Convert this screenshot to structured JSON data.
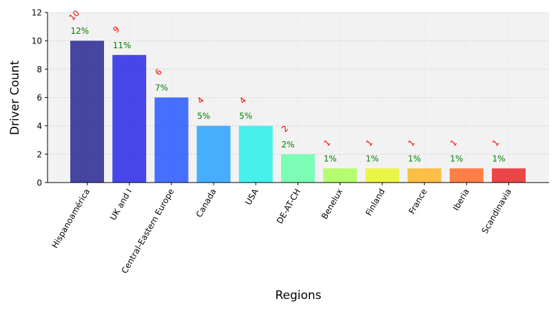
{
  "chart_data": {
    "type": "bar",
    "title": "",
    "xlabel": "Regions",
    "ylabel": "Driver Count",
    "categories": [
      "Hispanoamérica",
      "UK and I",
      "Central-Eastern Europe",
      "Canada",
      "USA",
      "DE-AT-CH",
      "Benelux",
      "Finland",
      "France",
      "Iberia",
      "Scandinavia"
    ],
    "values": [
      10,
      9,
      6,
      4,
      4,
      2,
      1,
      1,
      1,
      1,
      1
    ],
    "percent_labels": [
      "12%",
      "11%",
      "7%",
      "5%",
      "5%",
      "2%",
      "1%",
      "1%",
      "1%",
      "1%",
      "1%"
    ],
    "ylim": [
      0,
      12
    ],
    "yticks": [
      0,
      2,
      4,
      6,
      8,
      10,
      12
    ],
    "grid": true,
    "legend": "none",
    "colors": {
      "bars": [
        "#1a1a8c",
        "#1a1ae6",
        "#1a4dff",
        "#1a9cff",
        "#1af0e8",
        "#5cffa5",
        "#a5ff4d",
        "#e8f51a",
        "#ffb01a",
        "#ff621a",
        "#e81a1a"
      ],
      "bar_alpha": 0.8,
      "count_label": "#ff0000",
      "percent_label": "#008000",
      "plot_background": "#f2f2f2",
      "grid": "#cccccc"
    }
  }
}
